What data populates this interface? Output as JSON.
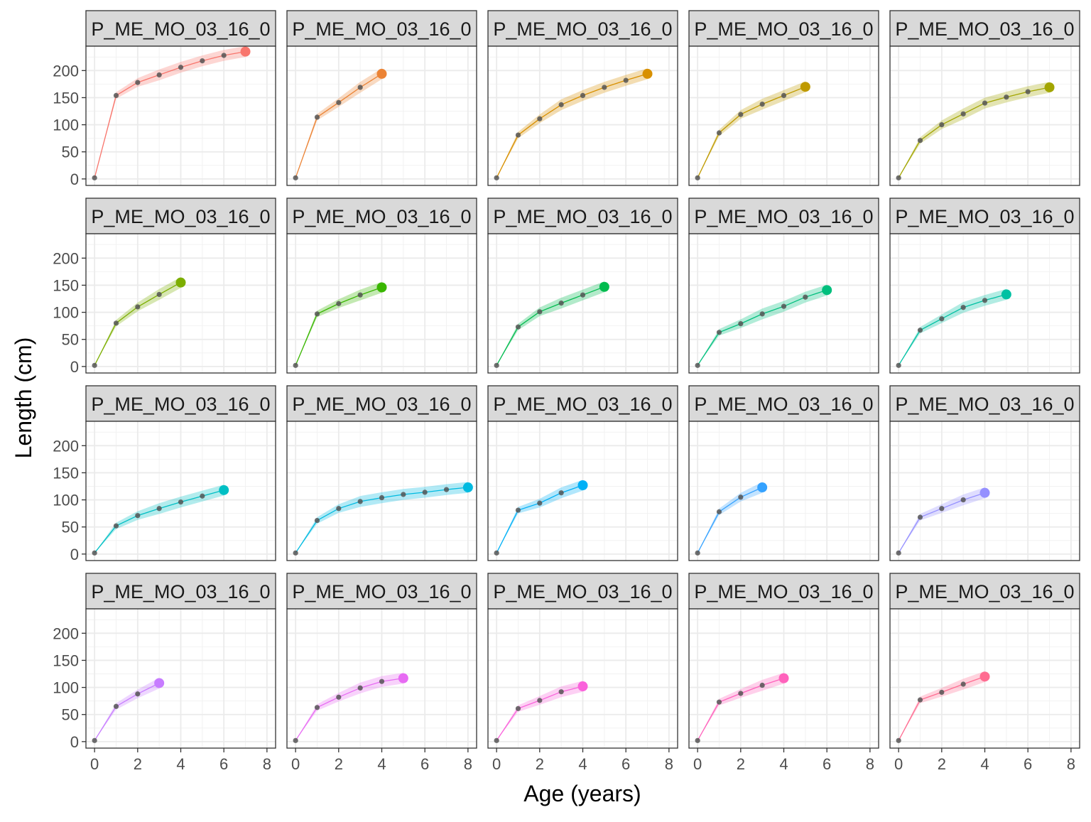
{
  "chart_data": {
    "type": "line",
    "xlabel": "Age (years)",
    "ylabel": "Length (cm)",
    "xlim": [
      -0.4,
      8.4
    ],
    "ylim": [
      -12,
      245
    ],
    "x_ticks": [
      0,
      2,
      4,
      6,
      8
    ],
    "y_ticks": [
      0,
      50,
      100,
      150,
      200
    ],
    "grid": true,
    "legend": "none",
    "facet_strip_text": "P_ME_MO_03_16_0",
    "panels": [
      {
        "color": "#F8766D",
        "x": [
          0,
          1,
          2,
          3,
          4,
          5,
          6,
          7
        ],
        "y": [
          2,
          154,
          178,
          192,
          206,
          218,
          228,
          235
        ]
      },
      {
        "color": "#EB8335",
        "x": [
          0,
          1,
          2,
          3,
          4
        ],
        "y": [
          2,
          114,
          141,
          169,
          194
        ]
      },
      {
        "color": "#D89000",
        "x": [
          0,
          1,
          2,
          3,
          4,
          5,
          6,
          7
        ],
        "y": [
          2,
          81,
          111,
          137,
          154,
          169,
          182,
          194
        ]
      },
      {
        "color": "#BF9A00",
        "x": [
          0,
          1,
          2,
          3,
          4,
          5
        ],
        "y": [
          2,
          85,
          119,
          138,
          154,
          170
        ]
      },
      {
        "color": "#A2A500",
        "x": [
          0,
          1,
          2,
          3,
          4,
          5,
          6,
          7
        ],
        "y": [
          2,
          71,
          100,
          120,
          140,
          151,
          161,
          169
        ]
      },
      {
        "color": "#7CAE00",
        "x": [
          0,
          1,
          2,
          3,
          4
        ],
        "y": [
          2,
          80,
          110,
          133,
          155
        ]
      },
      {
        "color": "#39B600",
        "x": [
          0,
          1,
          2,
          3,
          4
        ],
        "y": [
          2,
          97,
          116,
          132,
          146
        ]
      },
      {
        "color": "#00BB4E",
        "x": [
          0,
          1,
          2,
          3,
          4,
          5
        ],
        "y": [
          2,
          73,
          101,
          117,
          132,
          147
        ]
      },
      {
        "color": "#00BF7D",
        "x": [
          0,
          1,
          2,
          3,
          4,
          5,
          6
        ],
        "y": [
          2,
          63,
          79,
          97,
          111,
          128,
          141
        ]
      },
      {
        "color": "#00C1A3",
        "x": [
          0,
          1,
          2,
          3,
          4,
          5
        ],
        "y": [
          2,
          67,
          88,
          109,
          122,
          133
        ]
      },
      {
        "color": "#00BFC4",
        "x": [
          0,
          1,
          2,
          3,
          4,
          5,
          6
        ],
        "y": [
          2,
          52,
          71,
          84,
          96,
          107,
          118
        ]
      },
      {
        "color": "#00BAE0",
        "x": [
          0,
          1,
          2,
          3,
          4,
          5,
          6,
          7,
          8
        ],
        "y": [
          2,
          62,
          84,
          97,
          104,
          110,
          114,
          119,
          123
        ]
      },
      {
        "color": "#00B0F6",
        "x": [
          0,
          1,
          2,
          3,
          4
        ],
        "y": [
          2,
          81,
          94,
          113,
          127
        ]
      },
      {
        "color": "#35A2FF",
        "x": [
          0,
          1,
          2,
          3
        ],
        "y": [
          2,
          78,
          105,
          123
        ]
      },
      {
        "color": "#9590FF",
        "x": [
          0,
          1,
          2,
          3,
          4
        ],
        "y": [
          2,
          68,
          84,
          100,
          113
        ]
      },
      {
        "color": "#C77CFF",
        "x": [
          0,
          1,
          2,
          3
        ],
        "y": [
          2,
          65,
          88,
          108
        ]
      },
      {
        "color": "#E76BF3",
        "x": [
          0,
          1,
          2,
          3,
          4,
          5
        ],
        "y": [
          2,
          63,
          82,
          99,
          111,
          117
        ]
      },
      {
        "color": "#FA62DB",
        "x": [
          0,
          1,
          2,
          3,
          4
        ],
        "y": [
          2,
          61,
          76,
          92,
          102
        ]
      },
      {
        "color": "#FF62BC",
        "x": [
          0,
          1,
          2,
          3,
          4
        ],
        "y": [
          2,
          73,
          89,
          104,
          117
        ]
      },
      {
        "color": "#FF6C91",
        "x": [
          0,
          1,
          2,
          3,
          4
        ],
        "y": [
          2,
          77,
          91,
          106,
          120
        ]
      }
    ]
  }
}
